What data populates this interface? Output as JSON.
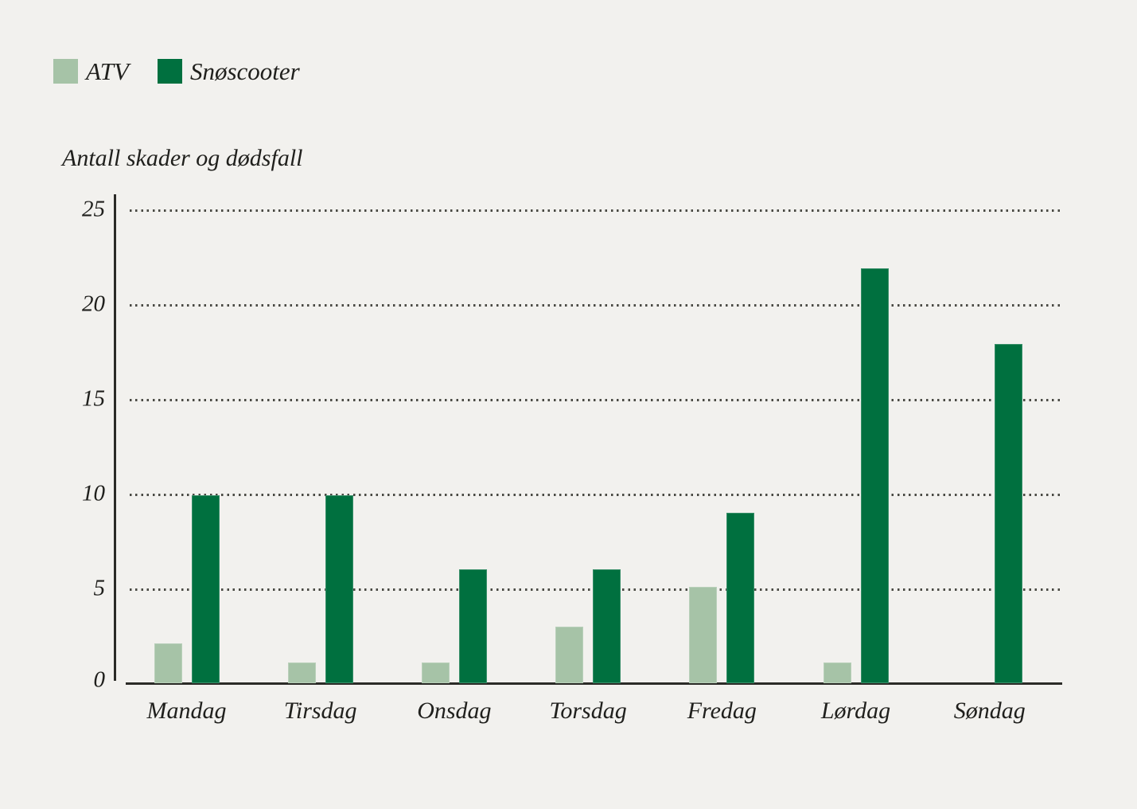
{
  "colors": {
    "background": "#f2f1ee",
    "text": "#20201d",
    "axis": "#2b2b27",
    "grid_dots": "#4a4a44"
  },
  "legend": {
    "items": [
      {
        "label": "ATV",
        "color": "#a6c3a7"
      },
      {
        "label": "Snøscooter",
        "color": "#00703f"
      }
    ]
  },
  "chart_data": {
    "type": "bar",
    "title": "Antall skader og dødsfall",
    "categories": [
      "Mandag",
      "Tirsdag",
      "Onsdag",
      "Torsdag",
      "Fredag",
      "Lørdag",
      "Søndag"
    ],
    "series": [
      {
        "name": "ATV",
        "color": "#a6c3a7",
        "values": [
          2.1,
          1.1,
          1.1,
          3,
          5.1,
          1.1,
          0
        ]
      },
      {
        "name": "Snøscooter",
        "color": "#00703f",
        "values": [
          9.9,
          9.9,
          6,
          6,
          9,
          21.9,
          17.9
        ]
      }
    ],
    "ylim": [
      0,
      25
    ],
    "yticks": [
      0,
      5,
      10,
      15,
      20,
      25
    ],
    "grid": "horizontal-dotted",
    "legend_position": "top-left"
  }
}
